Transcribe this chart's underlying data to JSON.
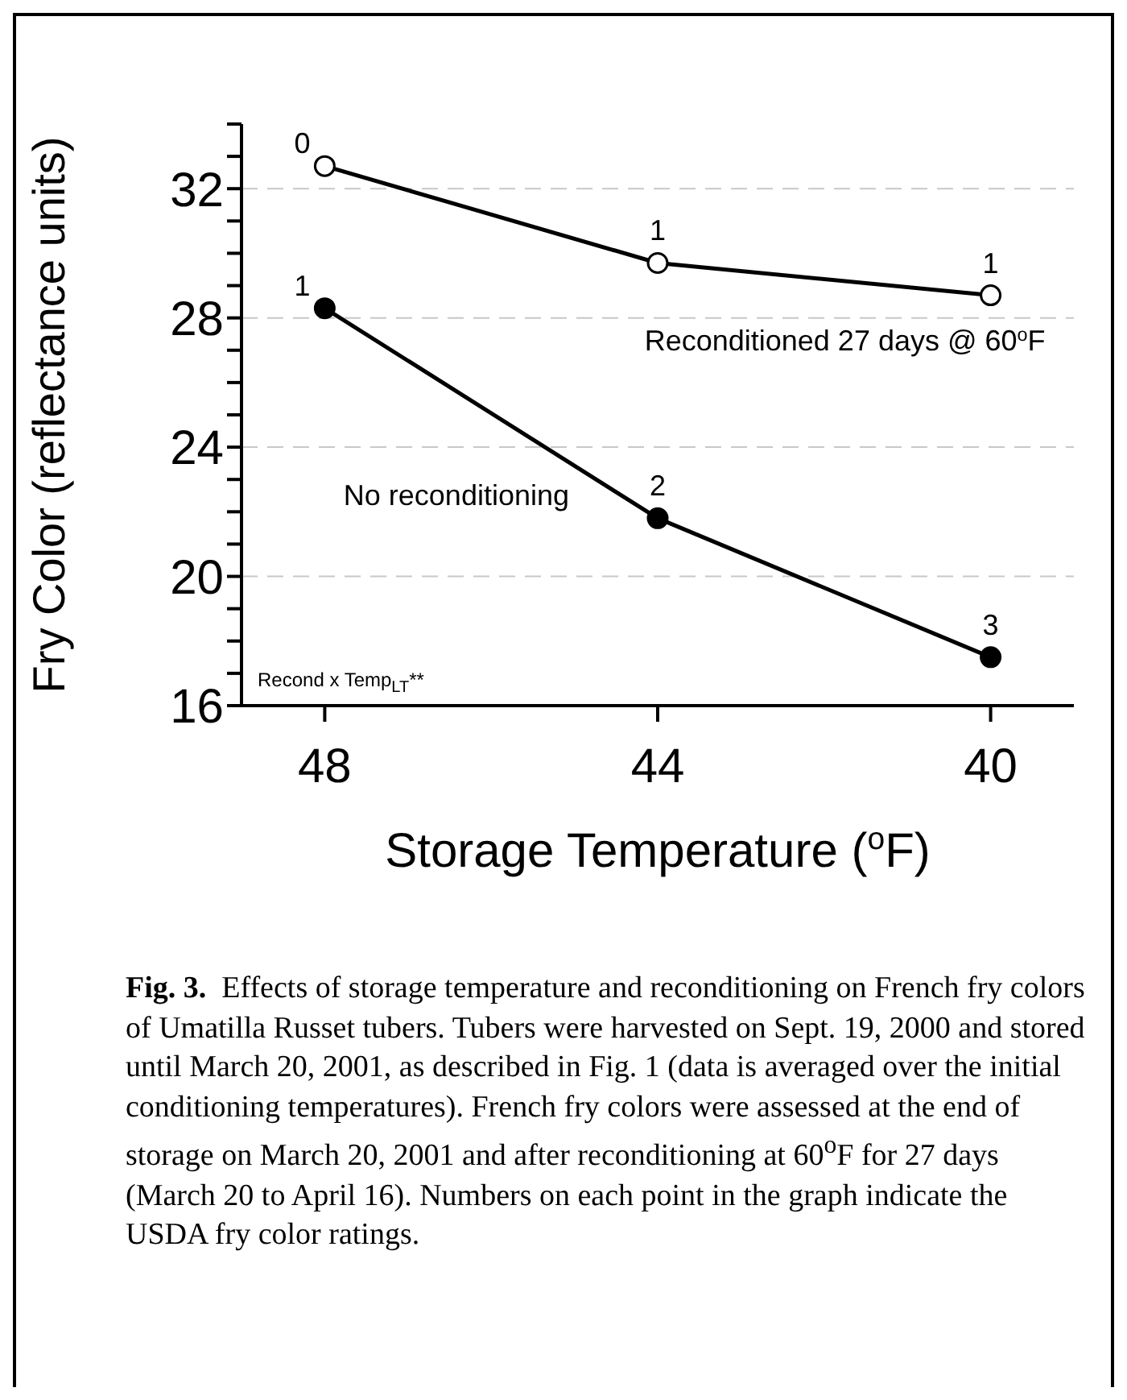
{
  "chart_data": {
    "type": "line",
    "xlabel": "Storage Temperature ($^{o}$F)",
    "ylabel": "Fry Color (reflectance units)",
    "x": [
      48,
      44,
      40
    ],
    "xlim": [
      49,
      39
    ],
    "xticks": [
      48,
      44,
      40
    ],
    "ylim": [
      16,
      34
    ],
    "yticks": [
      16,
      {
        "value": 17,
        "label": null
      },
      {
        "value": 18,
        "label": null
      },
      {
        "value": 19,
        "label": null
      },
      20,
      {
        "value": 21,
        "label": null
      },
      {
        "value": 22,
        "label": null
      },
      {
        "value": 23,
        "label": null
      },
      24,
      {
        "value": 25,
        "label": null
      },
      {
        "value": 26,
        "label": null
      },
      {
        "value": 27,
        "label": null
      },
      28,
      {
        "value": 29,
        "label": null
      },
      {
        "value": 30,
        "label": null
      },
      {
        "value": 31,
        "label": null
      },
      32,
      {
        "value": 33,
        "label": null
      },
      {
        "value": 34,
        "label": null
      }
    ],
    "series": [
      {
        "name": "Reconditioned 27 days @ 60$^{o}$F",
        "color": "#000000",
        "values": [
          32.7,
          29.7,
          28.7
        ]
      },
      {
        "name": "No reconditioning",
        "color": "#000000",
        "values": [
          28.3,
          21.8,
          17.5
        ]
      }
    ],
    "marker": "circle",
    "line_style": "solid",
    "grid": "y",
    "annotations": [
      {
        "text": "0",
        "x": 48,
        "y": 32.7
      },
      {
        "text": "1",
        "x": 44,
        "y": 29.7
      },
      {
        "text": "1",
        "x": 40,
        "y": 28.7
      },
      {
        "text": "1",
        "x": 48,
        "y": 28.3
      },
      {
        "text": "2",
        "x": 44,
        "y": 21.8
      },
      {
        "text": "3",
        "x": 40,
        "y": 17.5
      },
      "Recond x Temp$_{LT}$**",
      "Fig. 3.",
      "Effects of storage temperature and reconditioning on French fry colors of Umatilla Russet tubers.  Tubers were harvested on Sept. 19, 2000 and stored until March 20, 2001, as described in Fig. 1 (data is averaged over the initial conditioning temperatures). French fry colors were assessed at the end of storage on March 20, 2001 and after reconditioning at 60$^{o}$F for 27 days (March 20 to April 16).  Numbers on each point in the graph indicate the USDA fry color ratings."
    ]
  }
}
